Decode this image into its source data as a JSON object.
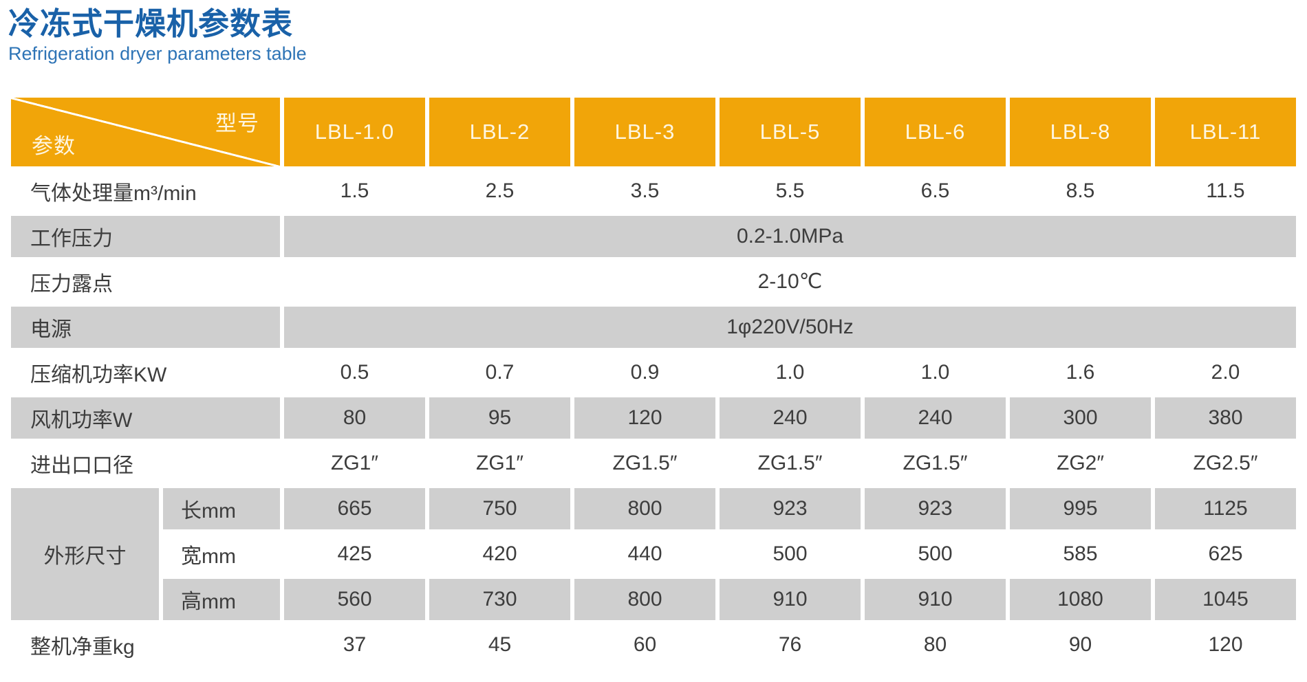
{
  "header": {
    "title": "冷冻式干燥机参数表",
    "subtitle": "Refrigeration dryer parameters table"
  },
  "colors": {
    "header_bg": "#F1A509",
    "row_alt_bg": "#CFCFCF",
    "title_blue": "#1961A8",
    "subtitle_blue": "#2E74B6"
  },
  "table": {
    "corner": {
      "top_right": "型号",
      "bottom_left": "参数"
    },
    "models": [
      "LBL-1.0",
      "LBL-2",
      "LBL-3",
      "LBL-5",
      "LBL-6",
      "LBL-8",
      "LBL-11"
    ],
    "rows": [
      {
        "label": "气体处理量m³/min",
        "values": [
          "1.5",
          "2.5",
          "3.5",
          "5.5",
          "6.5",
          "8.5",
          "11.5"
        ]
      },
      {
        "label": "工作压力",
        "span_value": "0.2-1.0MPa"
      },
      {
        "label": "压力露点",
        "span_value": "2-10℃"
      },
      {
        "label": "电源",
        "span_value": "1φ220V/50Hz"
      },
      {
        "label": "压缩机功率KW",
        "values": [
          "0.5",
          "0.7",
          "0.9",
          "1.0",
          "1.0",
          "1.6",
          "2.0"
        ]
      },
      {
        "label": "风机功率W",
        "values": [
          "80",
          "95",
          "120",
          "240",
          "240",
          "300",
          "380"
        ]
      },
      {
        "label": "进出口口径",
        "values": [
          "ZG1″",
          "ZG1″",
          "ZG1.5″",
          "ZG1.5″",
          "ZG1.5″",
          "ZG2″",
          "ZG2.5″"
        ]
      },
      {
        "group_label": "外形尺寸",
        "label": "长mm",
        "values": [
          "665",
          "750",
          "800",
          "923",
          "923",
          "995",
          "1125"
        ]
      },
      {
        "label": "宽mm",
        "values": [
          "425",
          "420",
          "440",
          "500",
          "500",
          "585",
          "625"
        ]
      },
      {
        "label": "高mm",
        "values": [
          "560",
          "730",
          "800",
          "910",
          "910",
          "1080",
          "1045"
        ]
      },
      {
        "label": "整机净重kg",
        "values": [
          "37",
          "45",
          "60",
          "76",
          "80",
          "90",
          "120"
        ]
      }
    ]
  }
}
